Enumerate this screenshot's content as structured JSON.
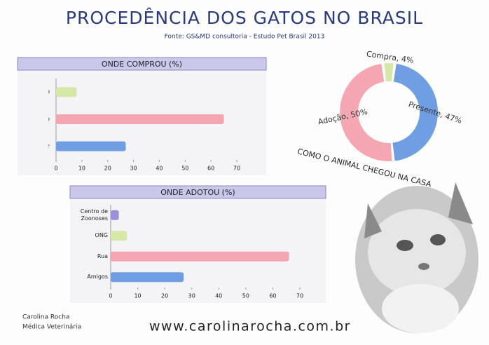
{
  "title": "PROCEDÊNCIA DOS GATOS NO BRASIL",
  "source": "Fonte: GS&MD consultoria - Estudo Pet Brasil 2013",
  "author": [
    "Carolina Rocha",
    "Médica Veterinária"
  ],
  "website": "www.carolinarocha.com.br",
  "chart_data": [
    {
      "type": "bar",
      "orientation": "horizontal",
      "title": "ONDE COMPROU (%)",
      "categories": [
        "Criadouro",
        "Petshop",
        "Particular"
      ],
      "values": [
        8,
        65,
        27
      ],
      "colors": [
        "#d6e8a8",
        "#f4a7b2",
        "#6f9fe2"
      ],
      "xlim": [
        0,
        70
      ],
      "xticks": [
        0,
        10,
        20,
        30,
        40,
        50,
        60,
        70
      ]
    },
    {
      "type": "donut",
      "title": "COMO O ANIMAL CHEGOU NA CASA",
      "values": [
        4,
        47,
        50
      ],
      "value_labels": [
        "Compra, 4%",
        "Presente, 47%",
        "Adoção, 50%"
      ],
      "colors": [
        "#d6e8a8",
        "#6f9fe2",
        "#f4a7b2"
      ]
    },
    {
      "type": "bar",
      "orientation": "horizontal",
      "title": "ONDE ADOTOU (%)",
      "categories": [
        "Centro de Zoonoses",
        "ONG",
        "Rua",
        "Amigos"
      ],
      "values": [
        3,
        6,
        66,
        27
      ],
      "colors": [
        "#9a8fd8",
        "#d6e8a8",
        "#f4a7b2",
        "#6f9fe2"
      ],
      "xlim": [
        0,
        70
      ],
      "xticks": [
        0,
        10,
        20,
        30,
        40,
        50,
        60,
        70
      ]
    }
  ]
}
